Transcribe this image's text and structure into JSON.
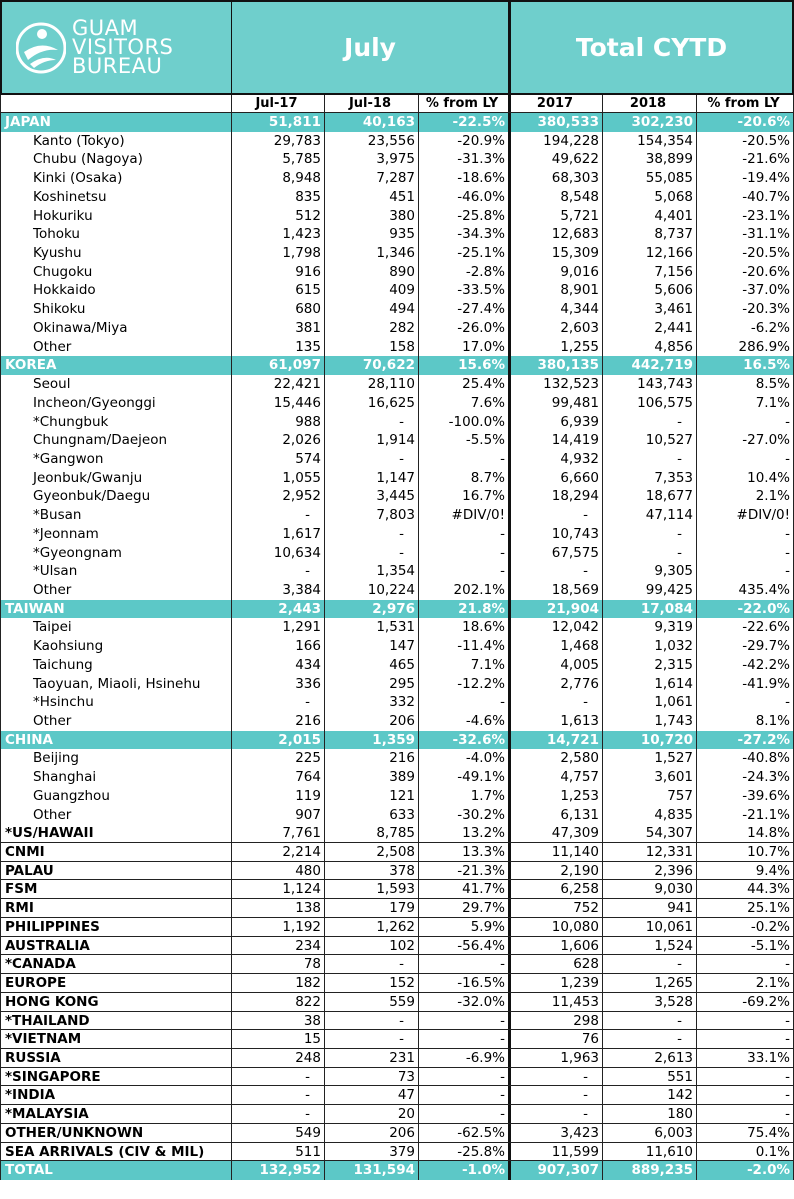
{
  "header": {
    "logo": [
      "GUAM",
      "VISITORS",
      "BUREAU"
    ],
    "july": "July",
    "cytd": "Total CYTD",
    "columns": [
      "Jul-17",
      "Jul-18",
      "% from LY",
      "2017",
      "2018",
      "% from LY"
    ]
  },
  "regions": [
    {
      "row": [
        "JAPAN",
        "51,811",
        "40,163",
        "-22.5%",
        "380,533",
        "302,230",
        "-20.6%"
      ],
      "subrows": [
        [
          "Kanto (Tokyo)",
          "29,783",
          "23,556",
          "-20.9%",
          "194,228",
          "154,354",
          "-20.5%"
        ],
        [
          "Chubu (Nagoya)",
          "5,785",
          "3,975",
          "-31.3%",
          "49,622",
          "38,899",
          "-21.6%"
        ],
        [
          "Kinki (Osaka)",
          "8,948",
          "7,287",
          "-18.6%",
          "68,303",
          "55,085",
          "-19.4%"
        ],
        [
          "Koshinetsu",
          "835",
          "451",
          "-46.0%",
          "8,548",
          "5,068",
          "-40.7%"
        ],
        [
          "Hokuriku",
          "512",
          "380",
          "-25.8%",
          "5,721",
          "4,401",
          "-23.1%"
        ],
        [
          "Tohoku",
          "1,423",
          "935",
          "-34.3%",
          "12,683",
          "8,737",
          "-31.1%"
        ],
        [
          "Kyushu",
          "1,798",
          "1,346",
          "-25.1%",
          "15,309",
          "12,166",
          "-20.5%"
        ],
        [
          "Chugoku",
          "916",
          "890",
          "-2.8%",
          "9,016",
          "7,156",
          "-20.6%"
        ],
        [
          "Hokkaido",
          "615",
          "409",
          "-33.5%",
          "8,901",
          "5,606",
          "-37.0%"
        ],
        [
          "Shikoku",
          "680",
          "494",
          "-27.4%",
          "4,344",
          "3,461",
          "-20.3%"
        ],
        [
          "Okinawa/Miya",
          "381",
          "282",
          "-26.0%",
          "2,603",
          "2,441",
          "-6.2%"
        ],
        [
          "Other",
          "135",
          "158",
          "17.0%",
          "1,255",
          "4,856",
          "286.9%"
        ]
      ]
    },
    {
      "row": [
        "KOREA",
        "61,097",
        "70,622",
        "15.6%",
        "380,135",
        "442,719",
        "16.5%"
      ],
      "subrows": [
        [
          "Seoul",
          "22,421",
          "28,110",
          "25.4%",
          "132,523",
          "143,743",
          "8.5%"
        ],
        [
          "Incheon/Gyeonggi",
          "15,446",
          "16,625",
          "7.6%",
          "99,481",
          "106,575",
          "7.1%"
        ],
        [
          "*Chungbuk",
          "988",
          "-",
          "-100.0%",
          "6,939",
          "-",
          "-"
        ],
        [
          "Chungnam/Daejeon",
          "2,026",
          "1,914",
          "-5.5%",
          "14,419",
          "10,527",
          "-27.0%"
        ],
        [
          "*Gangwon",
          "574",
          "-",
          "-",
          "4,932",
          "-",
          "-"
        ],
        [
          "Jeonbuk/Gwanju",
          "1,055",
          "1,147",
          "8.7%",
          "6,660",
          "7,353",
          "10.4%"
        ],
        [
          "Gyeonbuk/Daegu",
          "2,952",
          "3,445",
          "16.7%",
          "18,294",
          "18,677",
          "2.1%"
        ],
        [
          "*Busan",
          "-",
          "7,803",
          "#DIV/0!",
          "-",
          "47,114",
          "#DIV/0!"
        ],
        [
          "*Jeonnam",
          "1,617",
          "-",
          "-",
          "10,743",
          "-",
          "-"
        ],
        [
          "*Gyeongnam",
          "10,634",
          "-",
          "-",
          "67,575",
          "-",
          "-"
        ],
        [
          "*Ulsan",
          "-",
          "1,354",
          "-",
          "-",
          "9,305",
          "-"
        ],
        [
          "Other",
          "3,384",
          "10,224",
          "202.1%",
          "18,569",
          "99,425",
          "435.4%"
        ]
      ]
    },
    {
      "row": [
        "TAIWAN",
        "2,443",
        "2,976",
        "21.8%",
        "21,904",
        "17,084",
        "-22.0%"
      ],
      "subrows": [
        [
          "Taipei",
          "1,291",
          "1,531",
          "18.6%",
          "12,042",
          "9,319",
          "-22.6%"
        ],
        [
          "Kaohsiung",
          "166",
          "147",
          "-11.4%",
          "1,468",
          "1,032",
          "-29.7%"
        ],
        [
          "Taichung",
          "434",
          "465",
          "7.1%",
          "4,005",
          "2,315",
          "-42.2%"
        ],
        [
          "Taoyuan, Miaoli, Hsinehu",
          "336",
          "295",
          "-12.2%",
          "2,776",
          "1,614",
          "-41.9%"
        ],
        [
          "*Hsinchu",
          "-",
          "332",
          "-",
          "-",
          "1,061",
          "-"
        ],
        [
          "Other",
          "216",
          "206",
          "-4.6%",
          "1,613",
          "1,743",
          "8.1%"
        ]
      ]
    },
    {
      "row": [
        "CHINA",
        "2,015",
        "1,359",
        "-32.6%",
        "14,721",
        "10,720",
        "-27.2%"
      ],
      "subrows": [
        [
          "Beijing",
          "225",
          "216",
          "-4.0%",
          "2,580",
          "1,527",
          "-40.8%"
        ],
        [
          "Shanghai",
          "764",
          "389",
          "-49.1%",
          "4,757",
          "3,601",
          "-24.3%"
        ],
        [
          "Guangzhou",
          "119",
          "121",
          "1.7%",
          "1,253",
          "757",
          "-39.6%"
        ],
        [
          "Other",
          "907",
          "633",
          "-30.2%",
          "6,131",
          "4,835",
          "-21.1%"
        ]
      ]
    }
  ],
  "markets": [
    [
      "*US/HAWAII",
      "7,761",
      "8,785",
      "13.2%",
      "47,309",
      "54,307",
      "14.8%"
    ],
    [
      "CNMI",
      "2,214",
      "2,508",
      "13.3%",
      "11,140",
      "12,331",
      "10.7%"
    ],
    [
      "PALAU",
      "480",
      "378",
      "-21.3%",
      "2,190",
      "2,396",
      "9.4%"
    ],
    [
      "FSM",
      "1,124",
      "1,593",
      "41.7%",
      "6,258",
      "9,030",
      "44.3%"
    ],
    [
      "RMI",
      "138",
      "179",
      "29.7%",
      "752",
      "941",
      "25.1%"
    ],
    [
      "PHILIPPINES",
      "1,192",
      "1,262",
      "5.9%",
      "10,080",
      "10,061",
      "-0.2%"
    ],
    [
      "AUSTRALIA",
      "234",
      "102",
      "-56.4%",
      "1,606",
      "1,524",
      "-5.1%"
    ],
    [
      "*CANADA",
      "78",
      "-",
      "-",
      "628",
      "-",
      "-"
    ],
    [
      "EUROPE",
      "182",
      "152",
      "-16.5%",
      "1,239",
      "1,265",
      "2.1%"
    ],
    [
      "HONG KONG",
      "822",
      "559",
      "-32.0%",
      "11,453",
      "3,528",
      "-69.2%"
    ],
    [
      "*THAILAND",
      "38",
      "-",
      "-",
      "298",
      "-",
      "-"
    ],
    [
      "*VIETNAM",
      "15",
      "-",
      "-",
      "76",
      "-",
      "-"
    ],
    [
      "RUSSIA",
      "248",
      "231",
      "-6.9%",
      "1,963",
      "2,613",
      "33.1%"
    ],
    [
      "*SINGAPORE",
      "-",
      "73",
      "-",
      "-",
      "551",
      "-"
    ],
    [
      "*INDIA",
      "-",
      "47",
      "-",
      "-",
      "142",
      "-"
    ],
    [
      "*MALAYSIA",
      "-",
      "20",
      "-",
      "-",
      "180",
      "-"
    ],
    [
      "OTHER/UNKNOWN",
      "549",
      "206",
      "-62.5%",
      "3,423",
      "6,003",
      "75.4%"
    ],
    [
      "SEA ARRIVALS (CIV & MIL)",
      "511",
      "379",
      "-25.8%",
      "11,599",
      "11,610",
      "0.1%"
    ]
  ],
  "total": [
    "TOTAL",
    "132,952",
    "131,594",
    "-1.0%",
    "907,307",
    "889,235",
    "-2.0%"
  ]
}
